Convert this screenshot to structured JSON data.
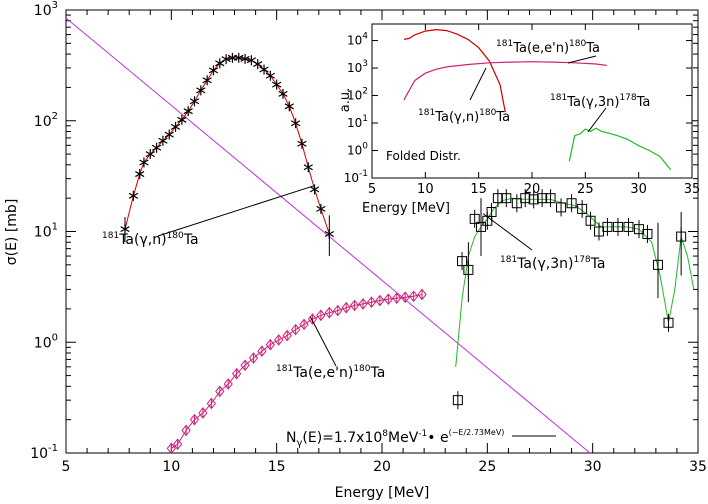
{
  "chart_data": [
    {
      "type": "scatter",
      "xlabel": "Energy [MeV]",
      "ylabel": "σ(E) [mb]",
      "xlim": [
        5,
        35
      ],
      "ylim": [
        0.1,
        1000
      ],
      "y_scale": "log",
      "x_ticks": [
        "5",
        "10",
        "15",
        "20",
        "25",
        "30",
        "35"
      ],
      "y_ticks": [
        {
          "base": "10",
          "exp": "-1",
          "value": 0.1
        },
        {
          "base": "10",
          "exp": "0",
          "value": 1
        },
        {
          "base": "10",
          "exp": "1",
          "value": 10
        },
        {
          "base": "10",
          "exp": "2",
          "value": 100
        },
        {
          "base": "10",
          "exp": "3",
          "value": 1000
        }
      ],
      "colors": {
        "gamma_n_line": "#cc0000",
        "e_en_line": "#cc2277",
        "gamma_3n_line": "#22bb22",
        "photon_flux_line": "#bb33dd",
        "axis": "#000000"
      },
      "series": [
        {
          "key": "gamma_n",
          "marker": "asterisk",
          "x": [
            7.8,
            8.2,
            8.5,
            8.7,
            9.0,
            9.3,
            9.6,
            9.9,
            10.2,
            10.5,
            10.8,
            11.1,
            11.4,
            11.7,
            12.0,
            12.3,
            12.6,
            12.9,
            13.2,
            13.5,
            13.8,
            14.1,
            14.4,
            14.7,
            15.0,
            15.3,
            15.6,
            15.9,
            16.2,
            16.5,
            16.8,
            17.1,
            17.5
          ],
          "y": [
            10.5,
            21,
            33,
            42,
            50,
            57,
            66,
            75,
            88,
            102,
            122,
            150,
            188,
            232,
            285,
            330,
            360,
            370,
            370,
            362,
            352,
            325,
            290,
            255,
            212,
            175,
            135,
            95,
            62,
            38,
            24,
            16,
            9.5
          ]
        },
        {
          "key": "gamma_3n",
          "marker": "square",
          "x": [
            23.6,
            23.8,
            24.1,
            24.4,
            24.7,
            25.0,
            25.2,
            25.5,
            25.9,
            26.4,
            26.8,
            27.2,
            27.6,
            28.0,
            28.5,
            29.0,
            29.5,
            29.9,
            30.3,
            30.7,
            31.2,
            31.7,
            32.2,
            32.6,
            33.1,
            33.6,
            34.2
          ],
          "y": [
            0.3,
            5.4,
            4.5,
            13,
            11,
            12.5,
            15,
            20,
            20,
            18,
            20,
            19.5,
            20,
            20,
            16.5,
            18,
            16,
            12.5,
            10,
            11,
            11,
            11,
            10.5,
            9.5,
            5,
            1.5,
            9
          ]
        },
        {
          "key": "e_en",
          "marker": "diamond",
          "x": [
            10.0,
            10.3,
            10.7,
            11.1,
            11.5,
            11.9,
            12.3,
            12.7,
            13.1,
            13.5,
            13.9,
            14.3,
            14.7,
            15.1,
            15.5,
            15.9,
            16.3,
            16.7,
            17.1,
            17.5,
            17.9,
            18.3,
            18.7,
            19.1,
            19.5,
            19.9,
            20.3,
            20.7,
            21.1,
            21.5,
            21.9
          ],
          "y": [
            0.11,
            0.12,
            0.16,
            0.2,
            0.23,
            0.28,
            0.36,
            0.42,
            0.52,
            0.62,
            0.72,
            0.83,
            0.95,
            1.05,
            1.15,
            1.3,
            1.45,
            1.62,
            1.75,
            1.85,
            1.93,
            2.05,
            2.15,
            2.22,
            2.3,
            2.38,
            2.45,
            2.5,
            2.55,
            2.6,
            2.7
          ]
        }
      ],
      "formula": {
        "text_a": "N",
        "sub": "γ",
        "text_b": "(E)=1.7x10",
        "sup1": "8",
        "text_c": "MeV",
        "sup2": "-1",
        "text_d": "• e",
        "sup3": "(−E/2.73MeV)"
      },
      "annotations": [
        {
          "key": "gamma_n",
          "sup1": "181",
          "t1": "Ta(",
          "g": "γ",
          "t2": ",n)",
          "sup2": "180",
          "t3": "Ta"
        },
        {
          "key": "gamma_3n",
          "sup1": "181",
          "t1": "Ta(",
          "g": "γ",
          "t2": ",3n)",
          "sup2": "178",
          "t3": "Ta"
        },
        {
          "key": "e_en",
          "sup1": "181",
          "t1": "Ta(e,e'n)",
          "sup2": "180",
          "t3": "Ta"
        }
      ]
    },
    {
      "type": "line",
      "inset": true,
      "xlabel": "Energy [MeV]",
      "ylabel": "a.u.",
      "xlim": [
        5,
        35
      ],
      "ylim": [
        0.1,
        40000
      ],
      "y_scale": "log",
      "x_ticks": [
        "5",
        "10",
        "15",
        "20",
        "25",
        "30",
        "35"
      ],
      "y_ticks": [
        {
          "base": "10",
          "exp": "-1",
          "value": 0.1
        },
        {
          "base": "10",
          "exp": "0",
          "value": 1
        },
        {
          "base": "10",
          "exp": "1",
          "value": 10
        },
        {
          "base": "10",
          "exp": "2",
          "value": 100
        },
        {
          "base": "10",
          "exp": "3",
          "value": 1000
        },
        {
          "base": "10",
          "exp": "4",
          "value": 10000
        }
      ],
      "series": [
        {
          "key": "folded_gamma_n",
          "x": [
            8.0,
            8.5,
            9.0,
            10.0,
            11.0,
            12.0,
            13.0,
            14.0,
            15.0,
            16.0,
            17.0,
            17.5
          ],
          "y": [
            11000,
            12000,
            16000,
            22000,
            25000,
            23000,
            17000,
            11000,
            5500,
            1800,
            250,
            25
          ]
        },
        {
          "key": "folded_e_en",
          "x": [
            8.0,
            9.0,
            10.0,
            11.0,
            12.0,
            14.0,
            16.0,
            18.0,
            20.0,
            22.0,
            24.0,
            26.0,
            27.0
          ],
          "y": [
            70,
            350,
            650,
            900,
            1100,
            1350,
            1550,
            1650,
            1700,
            1650,
            1550,
            1400,
            1250
          ]
        },
        {
          "key": "folded_gamma_3n",
          "x": [
            23.5,
            24.0,
            24.5,
            25.0,
            25.5,
            26.0,
            26.5,
            27.0,
            28.0,
            29.0,
            30.0,
            31.0,
            32.0,
            33.0
          ],
          "y": [
            0.4,
            3.5,
            4.0,
            6.0,
            5.0,
            6.5,
            5.0,
            4.5,
            3.5,
            2.5,
            1.5,
            1.0,
            0.6,
            0.2
          ]
        }
      ],
      "labels": [
        {
          "key": "e_en",
          "sup1": "181",
          "t1": "Ta(e,e'n)",
          "sup2": "180",
          "t3": "Ta"
        },
        {
          "key": "gamma_n",
          "sup1": "181",
          "t1": "Ta(",
          "g": "γ",
          "t2": ",n)",
          "sup2": "180",
          "t3": "Ta"
        },
        {
          "key": "gamma_3n",
          "sup1": "181",
          "t1": "Ta(",
          "g": "γ",
          "t2": ",3n)",
          "sup2": "178",
          "t3": "Ta"
        }
      ],
      "note": "Folded Distr."
    }
  ]
}
